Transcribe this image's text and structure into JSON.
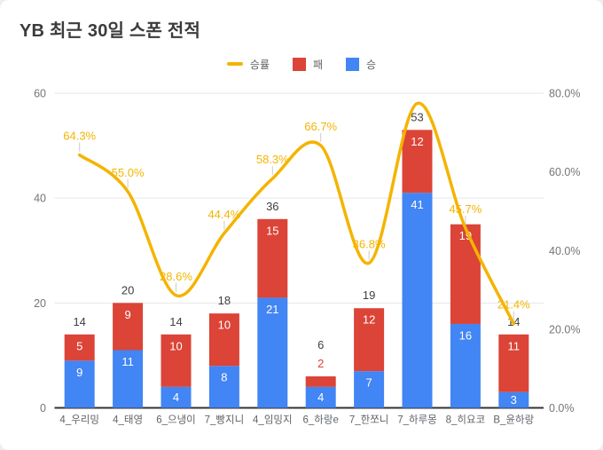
{
  "title": "YB 최근 30일 스폰 전적",
  "legend": [
    {
      "label": "승률",
      "type": "line",
      "color": "#F4B400"
    },
    {
      "label": "패",
      "type": "square",
      "color": "#DB4437"
    },
    {
      "label": "승",
      "type": "square",
      "color": "#4285F4"
    }
  ],
  "chart_data": {
    "type": "combo-stacked-bar-line",
    "title": "YB 최근 30일 스폰 전적",
    "categories": [
      "4_우리밍",
      "4_태영",
      "6_으냉이",
      "7_빵지니",
      "4_임밍지",
      "6_하랑e",
      "7_한쪼니",
      "7_하루몽",
      "8_히요코",
      "B_윤하랑"
    ],
    "series": [
      {
        "name": "승",
        "type": "bar",
        "color": "#4285F4",
        "values": [
          9,
          11,
          4,
          8,
          21,
          4,
          7,
          41,
          16,
          3
        ],
        "labels": [
          "9",
          "11",
          "4",
          "8",
          "21",
          "4",
          "7",
          "41",
          "16",
          "3"
        ]
      },
      {
        "name": "패",
        "type": "bar",
        "color": "#DB4437",
        "values": [
          5,
          9,
          10,
          10,
          15,
          2,
          12,
          12,
          19,
          11
        ],
        "labels": [
          "5",
          "9",
          "10",
          "10",
          "15",
          "2",
          "12",
          "12",
          "19",
          "11"
        ]
      },
      {
        "name": "승률",
        "type": "line",
        "color": "#F4B400",
        "values": [
          64.3,
          55.0,
          28.6,
          44.4,
          58.3,
          66.7,
          36.8,
          77.4,
          45.7,
          21.4
        ],
        "labels": [
          "64.3%",
          "55.0%",
          "28.6%",
          "44.4%",
          "58.3%",
          "66.7%",
          "36.8%",
          "",
          "45.7%",
          "21.4%"
        ]
      }
    ],
    "total_labels": [
      "14",
      "20",
      "14",
      "18",
      "36",
      "6",
      "19",
      "53",
      "",
      "14"
    ],
    "y_left": {
      "ticks": [
        0,
        20,
        40,
        60
      ],
      "max": 60
    },
    "y_right": {
      "ticks": [
        "0.0%",
        "20.0%",
        "40.0%",
        "60.0%",
        "80.0%"
      ],
      "step": 20,
      "max": 80
    },
    "grid": true,
    "legend_position": "top",
    "colors": {
      "grid": "#e6e6e6",
      "baseline": "#333333",
      "tick_text": "#757575",
      "category_text": "#5f6368",
      "total_text": "#404040",
      "bar_label_text": "#ffffff",
      "leader": "#cccccc"
    }
  }
}
